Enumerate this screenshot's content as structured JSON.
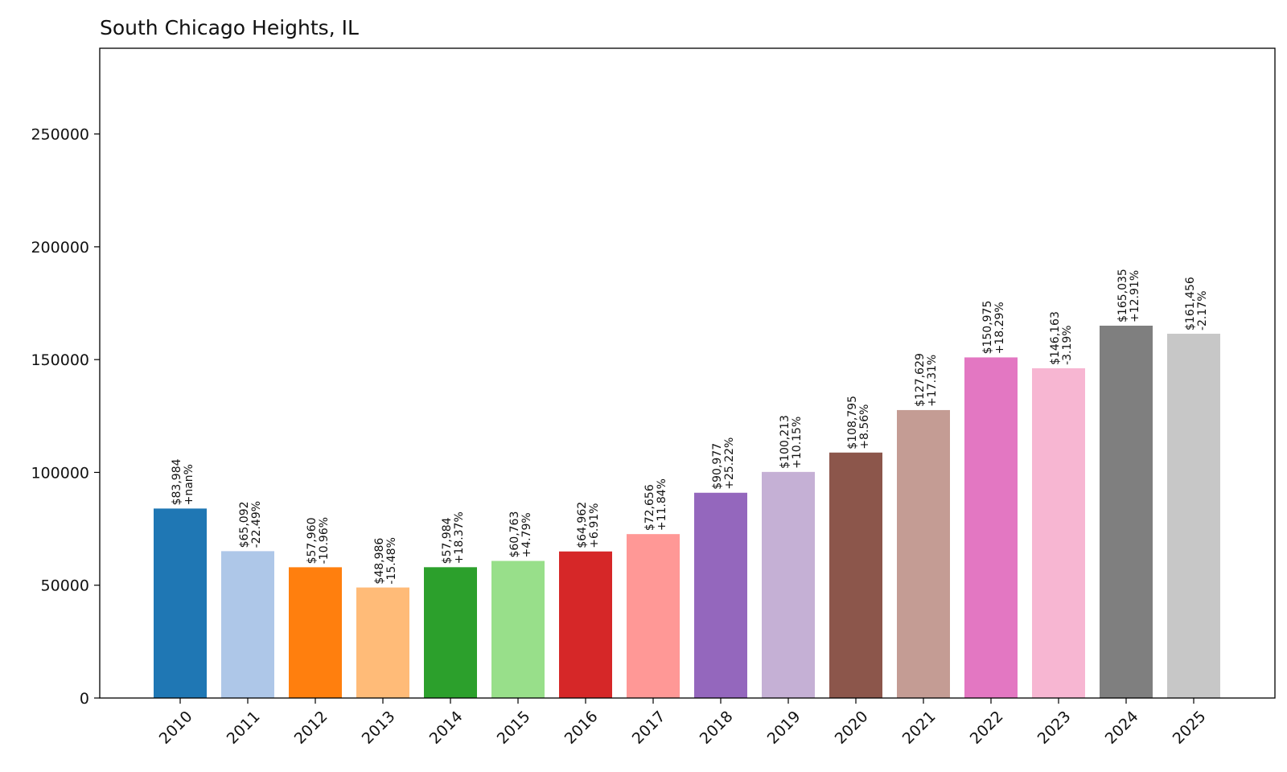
{
  "chart_data": {
    "type": "bar",
    "title": "South Chicago Heights, IL",
    "xlabel": "",
    "ylabel": "",
    "ylim": [
      0,
      288000
    ],
    "yticks": [
      0,
      50000,
      100000,
      150000,
      200000,
      250000
    ],
    "categories": [
      "2010",
      "2011",
      "2012",
      "2013",
      "2014",
      "2015",
      "2016",
      "2017",
      "2018",
      "2019",
      "2020",
      "2021",
      "2022",
      "2023",
      "2024",
      "2025"
    ],
    "values": [
      83984,
      65092,
      57960,
      48986,
      57984,
      60763,
      64962,
      72656,
      90977,
      100213,
      108795,
      127629,
      150975,
      146163,
      165035,
      161456
    ],
    "value_labels": [
      "$83,984",
      "$65,092",
      "$57,960",
      "$48,986",
      "$57,984",
      "$60,763",
      "$64,962",
      "$72,656",
      "$90,977",
      "$100,213",
      "$108,795",
      "$127,629",
      "$150,975",
      "$146,163",
      "$165,035",
      "$161,456"
    ],
    "change_labels": [
      "+nan%",
      "-22.49%",
      "-10.96%",
      "-15.48%",
      "+18.37%",
      "+4.79%",
      "+6.91%",
      "+11.84%",
      "+25.22%",
      "+10.15%",
      "+8.56%",
      "+17.31%",
      "+18.29%",
      "-3.19%",
      "+12.91%",
      "-2.17%"
    ],
    "colors": [
      "#1f77b4",
      "#aec7e8",
      "#ff7f0e",
      "#ffbb78",
      "#2ca02c",
      "#98df8a",
      "#d62728",
      "#ff9896",
      "#9467bd",
      "#c5b0d5",
      "#8c564b",
      "#c49c94",
      "#e377c2",
      "#f7b6d2",
      "#7f7f7f",
      "#c7c7c7"
    ],
    "grid": false,
    "legend": "none"
  }
}
